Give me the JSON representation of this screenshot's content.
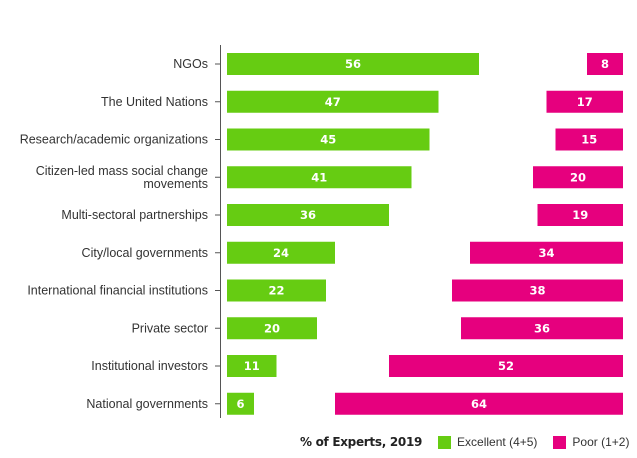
{
  "chart_data": {
    "type": "bar",
    "orientation": "horizontal",
    "categories": [
      [
        "NGOs"
      ],
      [
        "The United Nations"
      ],
      [
        "Research/academic organizations"
      ],
      [
        "Citizen-led mass social change",
        "movements"
      ],
      [
        "Multi-sectoral partnerships"
      ],
      [
        "City/local governments"
      ],
      [
        "International financial institutions"
      ],
      [
        "Private sector"
      ],
      [
        "Institutional investors"
      ],
      [
        "National governments"
      ]
    ],
    "series": [
      {
        "name": "Excellent (4+5)",
        "color": "#66cc12",
        "values": [
          56,
          47,
          45,
          41,
          36,
          24,
          22,
          20,
          11,
          6
        ],
        "align": "left"
      },
      {
        "name": "Poor (1+2)",
        "color": "#e6007e",
        "values": [
          8,
          17,
          15,
          20,
          19,
          34,
          38,
          36,
          52,
          64
        ],
        "align": "right"
      }
    ],
    "legend_title": "% of Experts, 2019",
    "legend_position": "bottom-right",
    "grid": false
  }
}
